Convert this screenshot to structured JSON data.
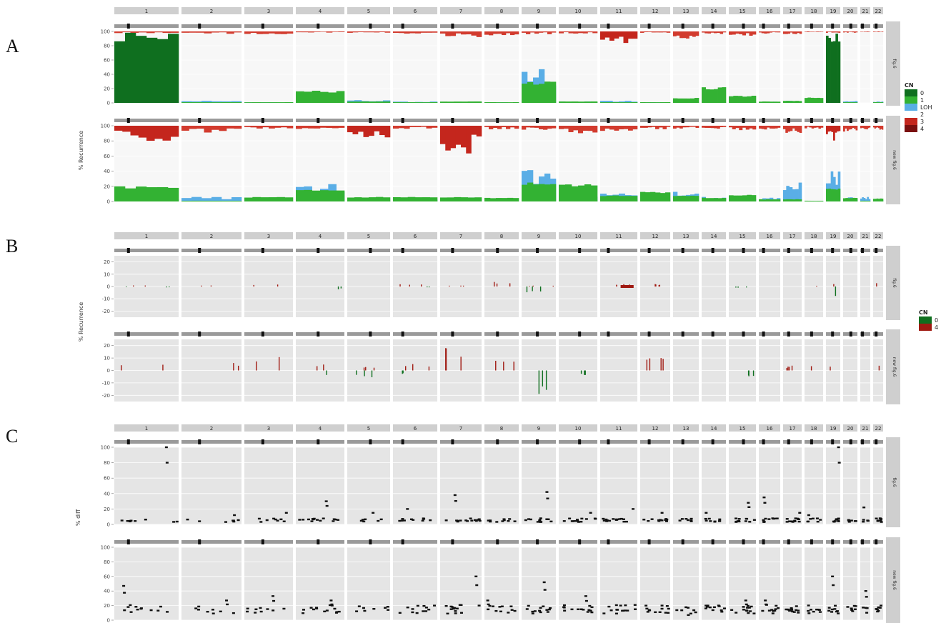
{
  "figure": {
    "panel_letters": [
      "A",
      "B",
      "C"
    ]
  },
  "chart_data": [
    {
      "type": "bar",
      "panel": "A",
      "ylabel": "% Recurrence",
      "ylim": [
        0,
        100
      ],
      "yticks": [
        0,
        20,
        40,
        60,
        80,
        100
      ],
      "strips": [
        "fig.6",
        "new fig.6"
      ],
      "legend": {
        "title": "CN",
        "position": "right",
        "entries": [
          {
            "label": "0",
            "color": "#0f6f1f"
          },
          {
            "label": "1",
            "color": "#33b233"
          },
          {
            "label": "LOH",
            "color": "#5aaee6"
          },
          {
            "label": "2",
            "color": "#ffffff"
          },
          {
            "label": "3",
            "color": "#c4261d"
          },
          {
            "label": "4",
            "color": "#7a0f0f"
          }
        ]
      },
      "chromosomes": [
        "1",
        "2",
        "3",
        "4",
        "5",
        "6",
        "7",
        "8",
        "9",
        "10",
        "11",
        "12",
        "13",
        "14",
        "15",
        "16",
        "17",
        "18",
        "19",
        "20",
        "21",
        "22"
      ],
      "series": [
        {
          "name": "fig.6",
          "loss": [
            100,
            1,
            1,
            17,
            2,
            1,
            2,
            1,
            30,
            2,
            1,
            1,
            7,
            22,
            10,
            2,
            3,
            8,
            100,
            1,
            0,
            1
          ],
          "loh": [
            3,
            3,
            1,
            1,
            4,
            2,
            1,
            1,
            48,
            2,
            3,
            1,
            1,
            1,
            1,
            2,
            3,
            2,
            1,
            3,
            0,
            2
          ],
          "gain": [
            3,
            4,
            4,
            2,
            2,
            3,
            8,
            6,
            4,
            3,
            20,
            2,
            10,
            4,
            6,
            3,
            4,
            1,
            2,
            2,
            1,
            1
          ]
        },
        {
          "name": "new fig.6",
          "loss": [
            20,
            1,
            6,
            16,
            6,
            6,
            6,
            5,
            25,
            23,
            8,
            13,
            8,
            5,
            9,
            3,
            3,
            1,
            18,
            5,
            1,
            4
          ],
          "loh": [
            3,
            6,
            1,
            24,
            2,
            4,
            6,
            2,
            45,
            9,
            11,
            3,
            13,
            6,
            4,
            5,
            27,
            1,
            40,
            6,
            6,
            3
          ],
          "gain": [
            20,
            9,
            4,
            5,
            16,
            4,
            38,
            5,
            7,
            10,
            8,
            5,
            4,
            4,
            6,
            5,
            10,
            4,
            20,
            8,
            5,
            6
          ]
        }
      ]
    },
    {
      "type": "bar",
      "panel": "B",
      "ylabel": "% Recurrence",
      "ylim": [
        -25,
        25
      ],
      "yticks": [
        -20,
        -10,
        0,
        10,
        20
      ],
      "strips": [
        "fig.6",
        "new fig.6"
      ],
      "legend": {
        "title": "CN",
        "position": "right",
        "entries": [
          {
            "label": "0",
            "color": "#0f6f1f"
          },
          {
            "label": "4",
            "color": "#a01a12"
          }
        ]
      },
      "chromosomes": [
        "1",
        "2",
        "3",
        "4",
        "5",
        "6",
        "7",
        "8",
        "9",
        "10",
        "11",
        "12",
        "13",
        "14",
        "15",
        "16",
        "17",
        "18",
        "19",
        "20",
        "21",
        "22"
      ],
      "series": [
        {
          "name": "fig.6",
          "pos": [
            1,
            1,
            2,
            0,
            0,
            2,
            1,
            4,
            1,
            0,
            2,
            2,
            0,
            0,
            0,
            0,
            0,
            1,
            2,
            0,
            0,
            4
          ],
          "neg": [
            1,
            0,
            0,
            3,
            0,
            1,
            0,
            0,
            6,
            0,
            0,
            0,
            0,
            0,
            1,
            0,
            0,
            0,
            8,
            0,
            0,
            0
          ]
        },
        {
          "name": "new fig.6",
          "pos": [
            7,
            6,
            12,
            6,
            4,
            6,
            18,
            8,
            0,
            0,
            0,
            10,
            0,
            0,
            0,
            0,
            4,
            4,
            4,
            0,
            0,
            4
          ],
          "neg": [
            0,
            0,
            0,
            4,
            6,
            3,
            0,
            0,
            20,
            4,
            0,
            0,
            0,
            0,
            6,
            0,
            0,
            0,
            0,
            0,
            0,
            0
          ]
        }
      ]
    },
    {
      "type": "scatter",
      "panel": "C",
      "ylabel": "% diff",
      "ylim": [
        0,
        100
      ],
      "yticks": [
        0,
        20,
        40,
        60,
        80,
        100
      ],
      "strips": [
        "fig.6",
        "new fig.6"
      ],
      "chromosomes": [
        "1",
        "2",
        "3",
        "4",
        "5",
        "6",
        "7",
        "8",
        "9",
        "10",
        "11",
        "12",
        "13",
        "14",
        "15",
        "16",
        "17",
        "18",
        "19",
        "20",
        "21",
        "22"
      ],
      "series": [
        {
          "name": "fig.6",
          "peak": [
            100,
            12,
            15,
            30,
            15,
            20,
            38,
            5,
            42,
            15,
            20,
            15,
            5,
            15,
            28,
            35,
            15,
            12,
            100,
            5,
            22,
            5
          ],
          "density": [
            9,
            7,
            8,
            15,
            6,
            10,
            14,
            9,
            12,
            13,
            15,
            12,
            6,
            9,
            12,
            10,
            13,
            7,
            8,
            5,
            4,
            6
          ]
        },
        {
          "name": "new fig.6",
          "peak": [
            47,
            27,
            33,
            27,
            14,
            20,
            60,
            27,
            52,
            33,
            20,
            20,
            7,
            20,
            27,
            27,
            14,
            14,
            60,
            14,
            40,
            20
          ],
          "density": [
            12,
            8,
            9,
            14,
            7,
            11,
            15,
            11,
            13,
            14,
            14,
            12,
            7,
            11,
            13,
            11,
            12,
            8,
            9,
            6,
            4,
            7
          ]
        }
      ]
    }
  ]
}
